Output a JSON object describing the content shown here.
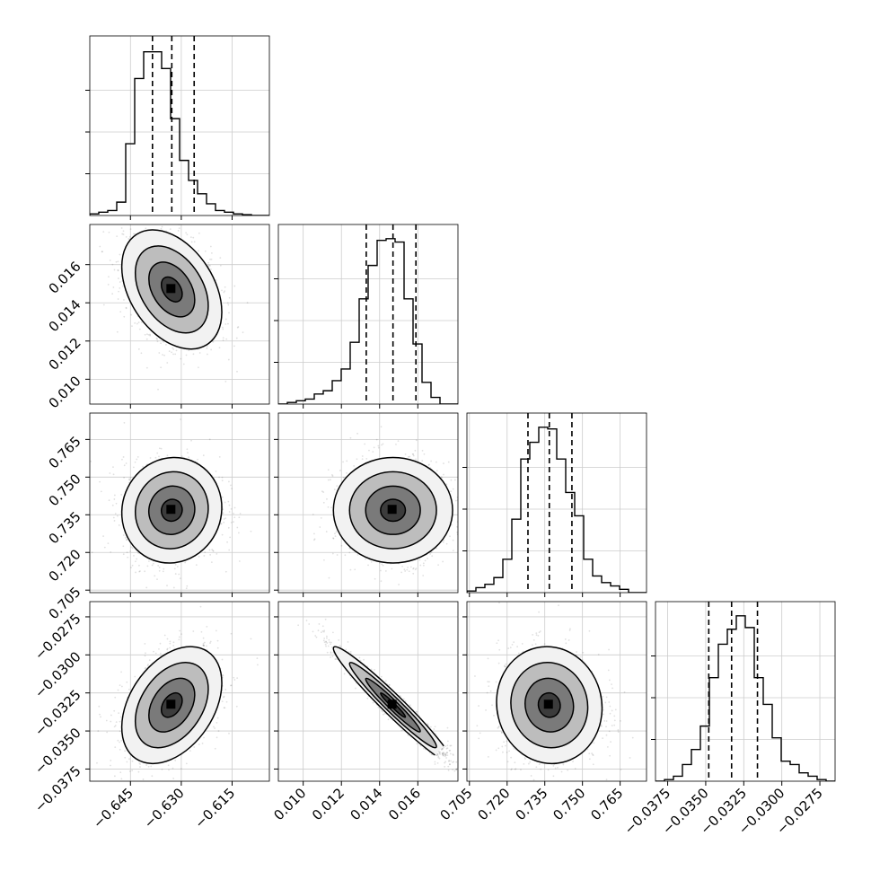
{
  "chart_data": {
    "type": "corner",
    "title": "",
    "parameters": [
      {
        "name": "",
        "range": [
          -0.657,
          -0.604
        ],
        "ticks": [
          -0.645,
          -0.63,
          -0.615
        ],
        "tick_labels": [
          "−0.645",
          "−0.630",
          "−0.615"
        ],
        "quantiles": [
          -0.6385,
          -0.6328,
          -0.6262
        ]
      },
      {
        "name": "",
        "range": [
          0.0087,
          0.0181
        ],
        "ticks": [
          0.01,
          0.012,
          0.014,
          0.016
        ],
        "tick_labels": [
          "0.010",
          "0.012",
          "0.014",
          "0.016"
        ],
        "quantiles": [
          0.0133,
          0.0147,
          0.0159
        ]
      },
      {
        "name": "",
        "range": [
          0.704,
          0.7755
        ],
        "ticks": [
          0.705,
          0.72,
          0.735,
          0.75,
          0.765
        ],
        "tick_labels": [
          "0.705",
          "0.720",
          "0.735",
          "0.750",
          "0.765"
        ],
        "quantiles": [
          0.7283,
          0.7368,
          0.7458
        ]
      },
      {
        "name": "",
        "range": [
          -0.0383,
          -0.0265
        ],
        "ticks": [
          -0.0375,
          -0.035,
          -0.0325,
          -0.03,
          -0.0275
        ],
        "tick_labels": [
          "−0.0375",
          "−0.0350",
          "−0.0325",
          "−0.0300",
          "−0.0275"
        ],
        "quantiles": [
          -0.0348,
          -0.0333,
          -0.0316
        ]
      }
    ],
    "histograms": [
      [
        0.01,
        0.02,
        0.03,
        0.08,
        0.43,
        0.82,
        0.98,
        0.98,
        0.88,
        0.58,
        0.33,
        0.21,
        0.13,
        0.07,
        0.03,
        0.02,
        0.01,
        0.005,
        0.0,
        0.0
      ],
      [
        0.0,
        0.01,
        0.02,
        0.03,
        0.06,
        0.08,
        0.14,
        0.21,
        0.37,
        0.63,
        0.83,
        0.98,
        0.99,
        0.97,
        0.63,
        0.36,
        0.13,
        0.04,
        0.0,
        0.0
      ],
      [
        0.01,
        0.03,
        0.05,
        0.09,
        0.2,
        0.44,
        0.8,
        0.9,
        0.99,
        0.98,
        0.8,
        0.6,
        0.46,
        0.2,
        0.1,
        0.06,
        0.04,
        0.02,
        0.0,
        0.0
      ],
      [
        0.0,
        0.01,
        0.03,
        0.1,
        0.19,
        0.33,
        0.62,
        0.82,
        0.91,
        0.99,
        0.92,
        0.62,
        0.46,
        0.26,
        0.12,
        0.1,
        0.05,
        0.03,
        0.01,
        0.0
      ]
    ],
    "correlations": [
      [
        1.0,
        -0.38,
        0.05,
        0.38
      ],
      [
        -0.38,
        1.0,
        0.0,
        -0.97
      ],
      [
        0.05,
        0.0,
        1.0,
        -0.05
      ],
      [
        0.38,
        -0.97,
        -0.05,
        1.0
      ]
    ],
    "grid": true,
    "legend": "none"
  }
}
